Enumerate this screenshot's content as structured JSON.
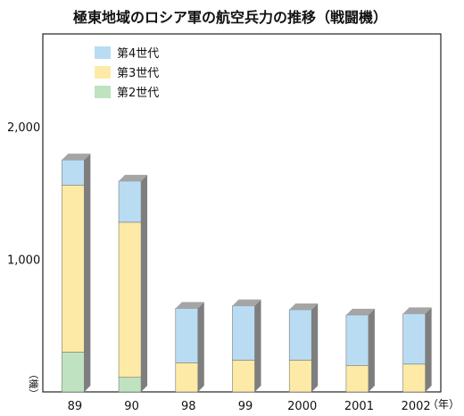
{
  "chart_data": {
    "type": "bar",
    "title": "極東地域のロシア軍の航空兵力の推移（戦闘機）",
    "categories": [
      "89",
      "90",
      "98",
      "99",
      "2000",
      "2001",
      "2002"
    ],
    "x_unit": "（年）",
    "y_unit": "（機）",
    "y_ticks": [
      {
        "label": "2,000",
        "value": 2000
      },
      {
        "label": "1,000",
        "value": 1000
      }
    ],
    "ylim": [
      0,
      2700
    ],
    "stacked": true,
    "legend_position": "top-left",
    "series": [
      {
        "name": "第2世代",
        "color": "#bfe3c0",
        "values": [
          300,
          110,
          0,
          0,
          0,
          0,
          0
        ]
      },
      {
        "name": "第3世代",
        "color": "#fdeaa6",
        "values": [
          1260,
          1170,
          220,
          240,
          240,
          200,
          210
        ]
      },
      {
        "name": "第4世代",
        "color": "#b9dcf3",
        "values": [
          190,
          310,
          410,
          410,
          380,
          380,
          380
        ]
      }
    ],
    "legend_order": [
      "第4世代",
      "第3世代",
      "第2世代"
    ]
  }
}
